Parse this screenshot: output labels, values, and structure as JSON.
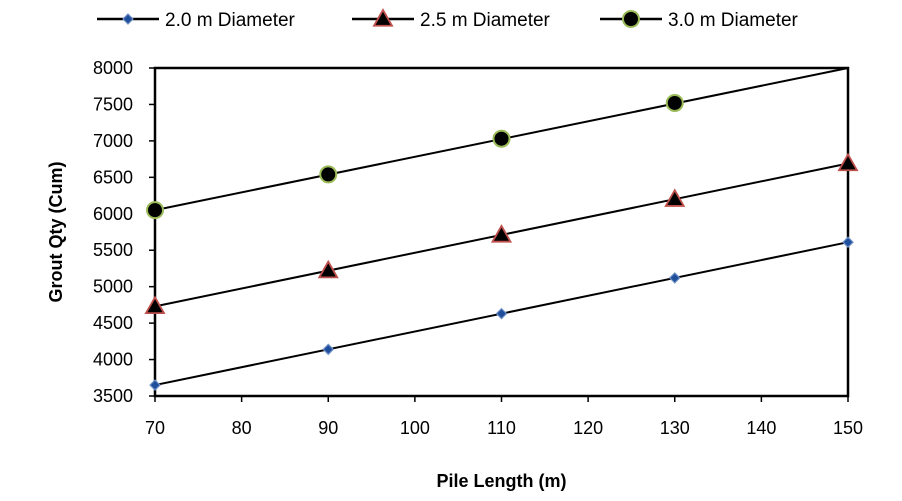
{
  "chart_data": {
    "type": "line",
    "title": "",
    "xlabel": "Pile Length (m)",
    "ylabel": "Grout Qty (Cum)",
    "xlim": [
      70,
      150
    ],
    "ylim": [
      3500,
      8000
    ],
    "x_ticks": [
      "70",
      "80",
      "90",
      "100",
      "110",
      "120",
      "130",
      "140",
      "150"
    ],
    "y_ticks": [
      "3500",
      "4000",
      "4500",
      "5000",
      "5500",
      "6000",
      "6500",
      "7000",
      "7500",
      "8000"
    ],
    "grid": false,
    "legend_position": "top",
    "series": [
      {
        "name": "2.0 m Diameter",
        "marker": "diamond",
        "marker_fill": "#1f4e9a",
        "marker_edge": "#6f8fc6",
        "x": [
          70,
          90,
          110,
          130,
          150
        ],
        "y": [
          3650,
          4140,
          4630,
          5120,
          5610
        ],
        "trend_y": [
          3650,
          5610
        ]
      },
      {
        "name": "2.5 m Diameter",
        "marker": "triangle",
        "marker_fill": "#000000",
        "marker_edge": "#c0504d",
        "x": [
          70,
          90,
          110,
          130,
          150
        ],
        "y": [
          4730,
          5220,
          5710,
          6200,
          6690
        ],
        "trend_y": [
          4730,
          6690
        ]
      },
      {
        "name": "3.0 m Diameter",
        "marker": "circle",
        "marker_fill": "#000000",
        "marker_edge": "#9bbb59",
        "x": [
          70,
          90,
          110,
          130
        ],
        "y": [
          6050,
          6540,
          7030,
          7520
        ],
        "trend_y": [
          6050,
          8000
        ]
      }
    ]
  }
}
